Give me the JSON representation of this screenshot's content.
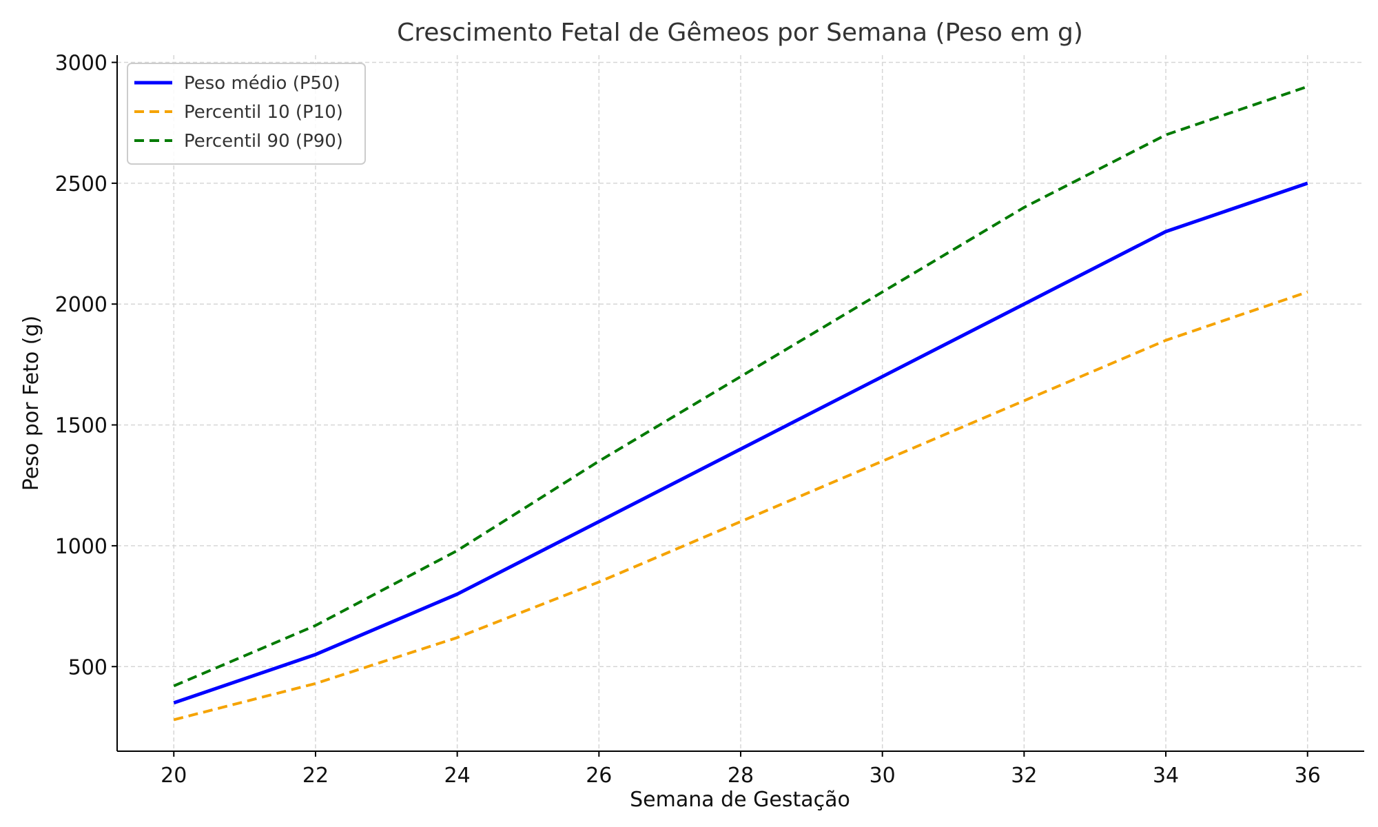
{
  "chart_data": {
    "type": "line",
    "title": "Crescimento Fetal de Gêmeos por Semana (Peso em g)",
    "xlabel": "Semana de Gestação",
    "ylabel": "Peso por Feto (g)",
    "x": [
      20,
      22,
      24,
      26,
      28,
      30,
      32,
      34,
      36
    ],
    "xticks": [
      "20",
      "22",
      "24",
      "26",
      "28",
      "30",
      "32",
      "34",
      "36"
    ],
    "yticks": [
      "500",
      "1000",
      "1500",
      "2000",
      "2500",
      "3000"
    ],
    "xlim": [
      19.2,
      36.8
    ],
    "ylim": [
      150,
      3030
    ],
    "grid": true,
    "legend_position": "top-left",
    "series": [
      {
        "name": "Peso médio (P50)",
        "values": [
          350,
          550,
          800,
          1100,
          1400,
          1700,
          2000,
          2300,
          2500
        ],
        "color": "#0000ff",
        "style": "solid"
      },
      {
        "name": "Percentil 10 (P10)",
        "values": [
          280,
          430,
          620,
          850,
          1100,
          1350,
          1600,
          1850,
          2050
        ],
        "color": "#f5a300",
        "style": "dashed"
      },
      {
        "name": "Percentil 90 (P90)",
        "values": [
          420,
          670,
          980,
          1350,
          1700,
          2050,
          2400,
          2700,
          2900
        ],
        "color": "#007a00",
        "style": "dashed"
      }
    ]
  }
}
